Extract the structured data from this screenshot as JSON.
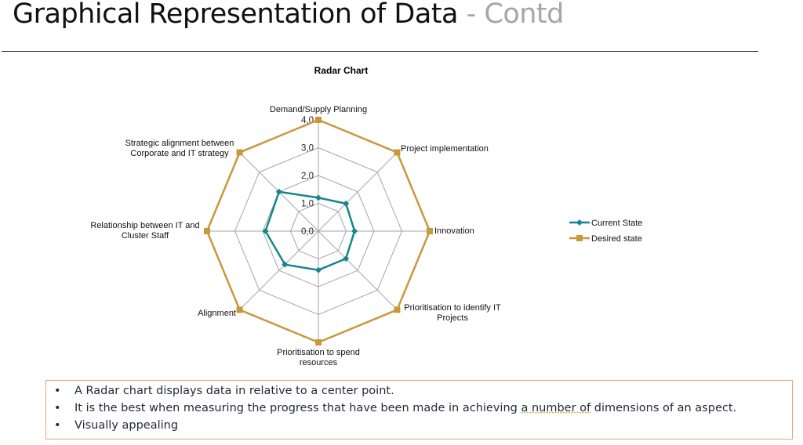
{
  "slide": {
    "title": "Graphical Representation of Data",
    "title_suffix": " - Contd"
  },
  "chart_data": {
    "type": "radar",
    "title": "Radar  Chart",
    "categories": [
      "Demand/Supply  Planning",
      "Project implementation",
      "Innovation",
      "Prioritisation to identify IT Projects",
      "Prioritisation to spend resources",
      "Alignment",
      "Relationship between IT and Cluster Staff",
      "Strategic alignment between Corporate and IT strategy"
    ],
    "category_label_lines": [
      [
        "Demand/Supply  Planning"
      ],
      [
        "Project implementation"
      ],
      [
        "Innovation"
      ],
      [
        "Prioritisation to identify IT",
        "Projects"
      ],
      [
        "Prioritisation to spend",
        "resources"
      ],
      [
        "Alignment"
      ],
      [
        "Relationship between IT and",
        "Cluster Staff"
      ],
      [
        "Strategic alignment between",
        "Corporate and IT strategy"
      ]
    ],
    "series": [
      {
        "name": "Current State",
        "color": "#16858f",
        "marker": "diamond",
        "values": [
          1.2,
          1.4,
          1.3,
          1.4,
          1.4,
          1.7,
          1.9,
          2.0
        ]
      },
      {
        "name": "Desired state",
        "color": "#c9983a",
        "marker": "square",
        "values": [
          4.0,
          4.0,
          4.0,
          4.0,
          4.0,
          4.0,
          4.0,
          4.0
        ]
      }
    ],
    "radial_ticks": [
      "0,0",
      "1,0",
      "2,0",
      "3,0",
      "4,0"
    ],
    "rlim": [
      0,
      4
    ],
    "grid": true,
    "legend_position": "right"
  },
  "notes": {
    "bullet_symbol": "•",
    "items": [
      {
        "text": "A Radar chart displays data in relative to a center point."
      },
      {
        "before": "It is the best when measuring the progress that have been made in achieving ",
        "marked": "a number of",
        "after": " dimensions of an aspect."
      },
      {
        "text": "Visually appealing"
      }
    ]
  }
}
